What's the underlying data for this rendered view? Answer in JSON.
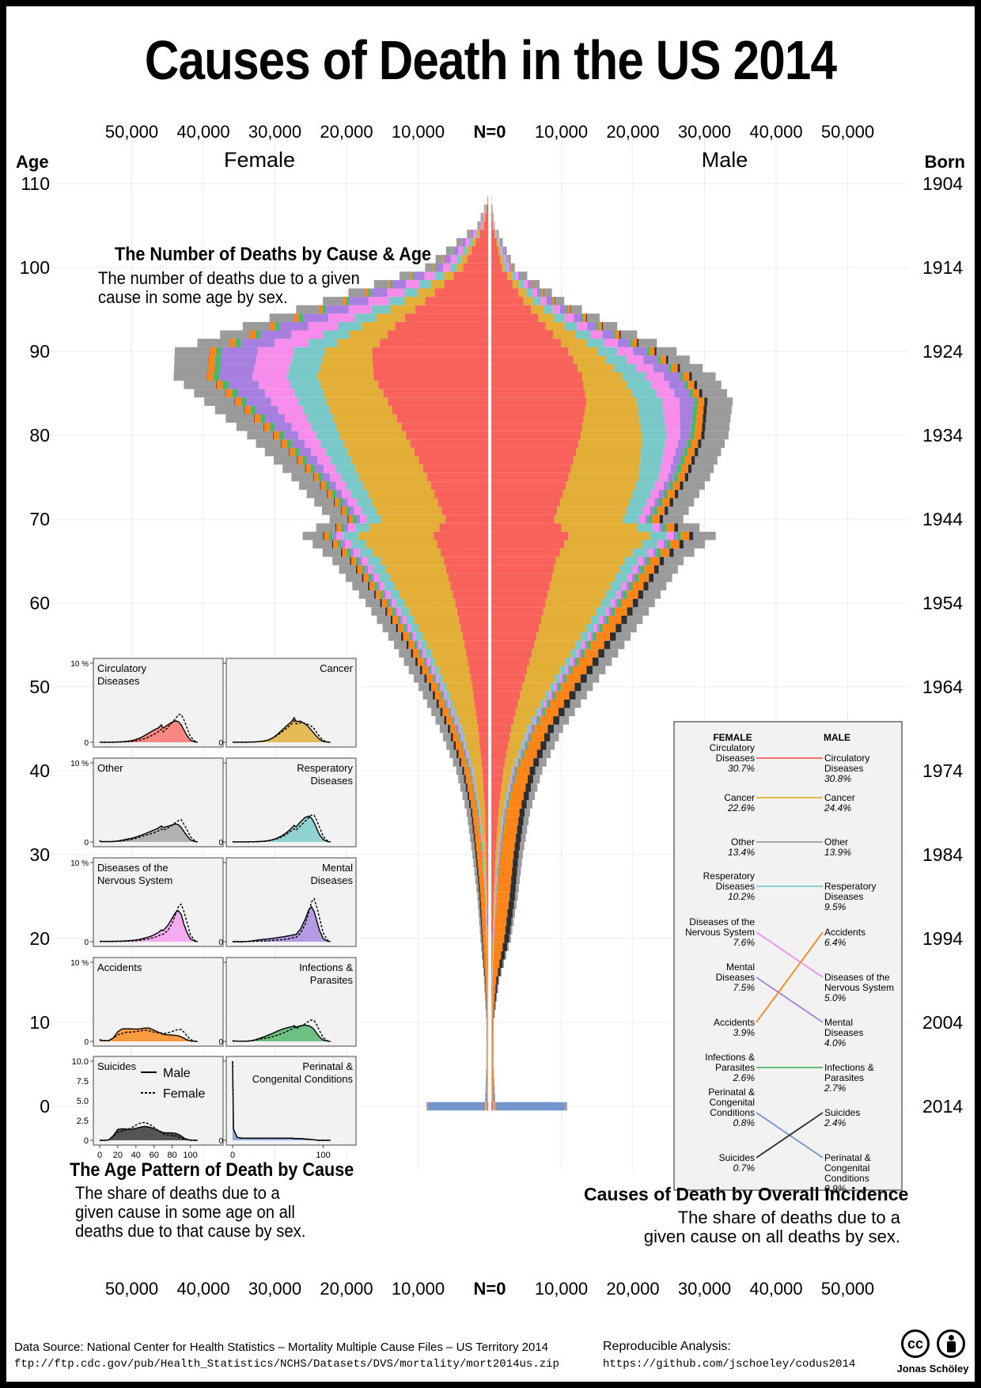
{
  "title": "Causes of Death in the US 2014",
  "pyramid": {
    "female_label": "Female",
    "male_label": "Male",
    "age_label": "Age",
    "born_label": "Born",
    "zero_label": "N=0",
    "x_ticks": [
      "50,000",
      "40,000",
      "30,000",
      "20,000",
      "10,000"
    ],
    "age_ticks": [
      "110",
      "100",
      "90",
      "80",
      "70",
      "60",
      "50",
      "40",
      "30",
      "20",
      "10",
      "0"
    ],
    "born_ticks": [
      "1904",
      "1914",
      "1924",
      "1934",
      "1944",
      "1954",
      "1964",
      "1974",
      "1984",
      "1994",
      "2004",
      "2014"
    ]
  },
  "annotations": {
    "number": {
      "title": "The Number of Deaths by Cause & Age",
      "body": "The number of deaths due to a given cause in some age by sex."
    },
    "age_pattern": {
      "title": "The Age Pattern of Death by Cause",
      "body": "The share of deaths due to a given cause in some age on all deaths due to that cause by sex."
    },
    "incidence": {
      "title": "Causes of Death by Overall Incidence",
      "body": "The share of deaths due to a given cause on all deaths by sex."
    }
  },
  "small_multiples": {
    "top_tick": "10 %",
    "zero_tick": "0",
    "suicide_y_ticks": [
      "10.0",
      "7.5",
      "5.0",
      "2.5",
      "0"
    ],
    "x_ticks": [
      "0",
      "20",
      "40",
      "60",
      "80",
      "100"
    ],
    "x_ticks_perinatal": [
      "0",
      "100"
    ],
    "legend_male": "Male",
    "legend_female": "Female",
    "panels": [
      {
        "label": "Circulatory Diseases",
        "color": "#F8766D"
      },
      {
        "label": "Cancer",
        "color": "#E2B13C"
      },
      {
        "label": "Other",
        "color": "#A6A6A6"
      },
      {
        "label": "Resperatory Diseases",
        "color": "#7FCBCB"
      },
      {
        "label": "Diseases of the Nervous System",
        "color": "#F79EF0"
      },
      {
        "label": "Mental Diseases",
        "color": "#A98CE0"
      },
      {
        "label": "Accidents",
        "color": "#FF8C1F"
      },
      {
        "label": "Infections & Parasites",
        "color": "#55B86E"
      },
      {
        "label": "Suicides",
        "color": "#3A3A3A"
      },
      {
        "label": "Perinatal & Congenital Conditions",
        "color": "#7A9BD1"
      }
    ]
  },
  "incidence_panel": {
    "female_header": "FEMALE",
    "male_header": "MALE"
  },
  "footer": {
    "source": "Data Source: National Center for Health Statistics – Mortality Multiple Cause Files – US Territory 2014",
    "url": "ftp://ftp.cdc.gov/pub/Health_Statistics/NCHS/Datasets/DVS/mortality/mort2014us.zip",
    "repro_label": "Reproducible Analysis:",
    "repro_url": "https://github.com/jschoeley/codus2014",
    "author": "Jonas Schöley",
    "cc_text": "cc"
  },
  "chart_data": [
    {
      "type": "bar",
      "title": "The Number of Deaths by Cause & Age",
      "xlabel": "",
      "ylabel": "Age",
      "xlim": [
        -50000,
        50000
      ],
      "ylim": [
        0,
        110
      ],
      "grid": true,
      "categories_note": "stacked counts per single-year age, female to the left, male to the right",
      "cause_order": [
        "Circulatory Diseases",
        "Cancer",
        "Resperatory Diseases",
        "Diseases of the Nervous System",
        "Mental Diseases",
        "Infections & Parasites",
        "Accidents",
        "Suicides",
        "Perinatal & Congenital Conditions",
        "Other"
      ],
      "colors": {
        "Circulatory Diseases": "#F8625B",
        "Cancer": "#E2AE35",
        "Other": "#9B9B9B",
        "Resperatory Diseases": "#79C8C8",
        "Diseases of the Nervous System": "#F78CEB",
        "Mental Diseases": "#A67FE0",
        "Accidents": "#FF8417",
        "Infections & Parasites": "#4DB56A",
        "Suicides": "#2E2E2E",
        "Perinatal & Congenital Conditions": "#7496CF"
      },
      "age_points": [
        0,
        1,
        5,
        10,
        15,
        20,
        25,
        30,
        35,
        40,
        45,
        50,
        55,
        60,
        65,
        68,
        70,
        75,
        80,
        84,
        87,
        90,
        93,
        96,
        100,
        105,
        108
      ],
      "female_by_cause": {
        "Circulatory Diseases": [
          200,
          30,
          20,
          25,
          40,
          80,
          150,
          280,
          450,
          800,
          1400,
          2200,
          3300,
          4600,
          6200,
          7600,
          6000,
          8500,
          11500,
          14000,
          16000,
          16200,
          13000,
          8800,
          3500,
          600,
          50
        ],
        "Cancer": [
          50,
          20,
          30,
          30,
          40,
          80,
          150,
          320,
          650,
          1200,
          2200,
          3600,
          5200,
          7000,
          8800,
          10500,
          9000,
          9500,
          9200,
          8600,
          7800,
          6600,
          4600,
          2800,
          900,
          150,
          10
        ],
        "Other": [
          300,
          80,
          60,
          60,
          80,
          150,
          250,
          400,
          550,
          800,
          1100,
          1400,
          1700,
          2000,
          2400,
          2800,
          2500,
          3000,
          3600,
          4200,
          4600,
          4800,
          3800,
          2800,
          1200,
          250,
          20
        ],
        "Resperatory Diseases": [
          40,
          10,
          10,
          10,
          10,
          20,
          30,
          60,
          100,
          200,
          350,
          550,
          850,
          1300,
          1800,
          2100,
          1900,
          2600,
          3300,
          3900,
          4300,
          4300,
          3400,
          2300,
          900,
          150,
          10
        ],
        "Diseases of the Nervous System": [
          30,
          20,
          20,
          20,
          20,
          30,
          40,
          60,
          90,
          130,
          200,
          300,
          400,
          550,
          800,
          1000,
          1000,
          1500,
          2500,
          3800,
          4800,
          5100,
          4100,
          2800,
          1000,
          150,
          10
        ],
        "Mental Diseases": [
          0,
          0,
          0,
          0,
          10,
          20,
          40,
          60,
          80,
          120,
          160,
          200,
          250,
          300,
          400,
          500,
          500,
          1000,
          2000,
          3400,
          4600,
          5000,
          4000,
          2700,
          1000,
          150,
          10
        ],
        "Accidents": [
          150,
          100,
          60,
          60,
          250,
          500,
          600,
          700,
          700,
          750,
          800,
          850,
          800,
          700,
          650,
          650,
          600,
          650,
          750,
          850,
          900,
          900,
          700,
          450,
          150,
          20,
          0
        ],
        "Infections & Parasites": [
          30,
          10,
          10,
          10,
          10,
          20,
          50,
          90,
          120,
          150,
          200,
          250,
          320,
          400,
          480,
          560,
          500,
          600,
          700,
          800,
          850,
          820,
          650,
          420,
          150,
          20,
          0
        ],
        "Suicides": [
          0,
          0,
          0,
          10,
          80,
          150,
          170,
          200,
          230,
          280,
          320,
          330,
          300,
          240,
          180,
          150,
          120,
          100,
          90,
          80,
          60,
          40,
          20,
          10,
          0,
          0,
          0
        ],
        "Perinatal & Congenital Conditions": [
          7800,
          150,
          40,
          30,
          30,
          30,
          30,
          30,
          30,
          30,
          30,
          30,
          30,
          30,
          30,
          30,
          20,
          20,
          20,
          10,
          10,
          10,
          0,
          0,
          0,
          0,
          0
        ]
      },
      "male_by_cause": {
        "Circulatory Diseases": [
          250,
          40,
          25,
          30,
          70,
          180,
          350,
          600,
          1000,
          1700,
          2800,
          4300,
          6000,
          7600,
          9000,
          10800,
          8800,
          10800,
          12500,
          13300,
          12700,
          10800,
          7600,
          4500,
          1500,
          200,
          20
        ],
        "Cancer": [
          60,
          25,
          35,
          35,
          50,
          100,
          180,
          330,
          600,
          1150,
          2200,
          3900,
          5800,
          7800,
          9600,
          11400,
          9700,
          9800,
          8600,
          7000,
          5600,
          4100,
          2600,
          1400,
          400,
          60,
          5
        ],
        "Other": [
          350,
          90,
          60,
          60,
          100,
          200,
          350,
          550,
          700,
          950,
          1250,
          1600,
          1950,
          2300,
          2700,
          3100,
          2800,
          3000,
          3300,
          3500,
          3300,
          2800,
          2000,
          1300,
          450,
          80,
          10
        ],
        "Resperatory Diseases": [
          50,
          15,
          10,
          10,
          15,
          30,
          40,
          70,
          110,
          200,
          350,
          580,
          900,
          1350,
          1900,
          2300,
          2100,
          2800,
          3400,
          3600,
          3300,
          2700,
          1800,
          1000,
          350,
          50,
          5
        ],
        "Diseases of the Nervous System": [
          40,
          25,
          25,
          25,
          30,
          40,
          50,
          70,
          100,
          140,
          200,
          300,
          400,
          550,
          750,
          950,
          900,
          1300,
          1900,
          2400,
          2500,
          2200,
          1400,
          800,
          250,
          40,
          5
        ],
        "Mental Diseases": [
          0,
          0,
          0,
          0,
          10,
          40,
          80,
          120,
          150,
          180,
          220,
          260,
          300,
          350,
          400,
          450,
          450,
          800,
          1400,
          2000,
          2200,
          1900,
          1300,
          700,
          200,
          30,
          5
        ],
        "Accidents": [
          200,
          150,
          100,
          100,
          500,
          1400,
          1800,
          1800,
          1800,
          1750,
          1800,
          1900,
          1900,
          1600,
          1300,
          1150,
          1000,
          950,
          900,
          850,
          800,
          650,
          450,
          250,
          70,
          10,
          0
        ],
        "Infections & Parasites": [
          40,
          15,
          10,
          10,
          10,
          25,
          60,
          120,
          180,
          250,
          320,
          400,
          470,
          520,
          560,
          600,
          550,
          600,
          620,
          600,
          550,
          450,
          300,
          170,
          50,
          10,
          0
        ],
        "Suicides": [
          0,
          0,
          0,
          20,
          300,
          700,
          750,
          720,
          720,
          780,
          850,
          900,
          850,
          750,
          620,
          560,
          500,
          480,
          480,
          450,
          380,
          280,
          150,
          70,
          20,
          0,
          0
        ],
        "Perinatal & Congenital Conditions": [
          9600,
          180,
          50,
          35,
          35,
          35,
          35,
          35,
          35,
          35,
          35,
          35,
          35,
          35,
          35,
          30,
          30,
          30,
          20,
          20,
          10,
          10,
          0,
          0,
          0,
          0,
          0
        ]
      }
    },
    {
      "type": "line",
      "title": "Causes of Death by Overall Incidence",
      "xlabel": "",
      "ylabel": "",
      "x": [
        "FEMALE",
        "MALE"
      ],
      "series": [
        {
          "name": "Circulatory Diseases",
          "female_label": "Circulatory Diseases",
          "male_label": "Circulatory Diseases",
          "female_pct": "30.7%",
          "male_pct": "30.8%",
          "female_rank": 1,
          "male_rank": 1,
          "color": "#F8625B"
        },
        {
          "name": "Cancer",
          "female_label": "Cancer",
          "male_label": "Cancer",
          "female_pct": "22.6%",
          "male_pct": "24.4%",
          "female_rank": 2,
          "male_rank": 2,
          "color": "#E2AE35"
        },
        {
          "name": "Other",
          "female_label": "Other",
          "male_label": "Other",
          "female_pct": "13.4%",
          "male_pct": "13.9%",
          "female_rank": 3,
          "male_rank": 3,
          "color": "#9B9B9B"
        },
        {
          "name": "Resperatory Diseases",
          "female_label": "Resperatory Diseases",
          "male_label": "Resperatory Diseases",
          "female_pct": "10.2%",
          "male_pct": "9.5%",
          "female_rank": 4,
          "male_rank": 4,
          "color": "#79C8C8"
        },
        {
          "name": "Diseases of the Nervous System",
          "female_label": "Diseases of the Nervous System",
          "male_label": "Diseases of the Nervous System",
          "female_pct": "7.6%",
          "male_pct": "5.0%",
          "female_rank": 5,
          "male_rank": 6,
          "color": "#F78CEB"
        },
        {
          "name": "Mental Diseases",
          "female_label": "Mental Diseases",
          "male_label": "Mental Diseases",
          "female_pct": "7.5%",
          "male_pct": "4.0%",
          "female_rank": 6,
          "male_rank": 7,
          "color": "#A67FE0"
        },
        {
          "name": "Accidents",
          "female_label": "Accidents",
          "male_label": "Accidents",
          "female_pct": "3.9%",
          "male_pct": "6.4%",
          "female_rank": 7,
          "male_rank": 5,
          "color": "#FF8417"
        },
        {
          "name": "Infections & Parasites",
          "female_label": "Infections & Parasites",
          "male_label": "Infections & Parasites",
          "female_pct": "2.6%",
          "male_pct": "2.7%",
          "female_rank": 8,
          "male_rank": 8,
          "color": "#4DB56A"
        },
        {
          "name": "Perinatal & Congenital Conditions",
          "female_label": "Perinatal & Congenital Conditions",
          "male_label": "Perinatal & Congenital Conditions",
          "female_pct": "0.8%",
          "male_pct": "0.9%",
          "female_rank": 9,
          "male_rank": 10,
          "color": "#7496CF"
        },
        {
          "name": "Suicides",
          "female_label": "Suicides",
          "male_label": "Suicides",
          "female_pct": "0.7%",
          "male_pct": "2.4%",
          "female_rank": 10,
          "male_rank": 9,
          "color": "#2E2E2E"
        }
      ]
    },
    {
      "type": "area",
      "title": "The Age Pattern of Death by Cause",
      "xlabel": "",
      "ylabel": "",
      "xlim": [
        0,
        110
      ],
      "ylim": [
        0,
        10
      ],
      "ages": [
        0,
        1,
        5,
        10,
        15,
        20,
        25,
        30,
        35,
        40,
        45,
        50,
        55,
        60,
        65,
        68,
        70,
        75,
        80,
        84,
        87,
        90,
        93,
        96,
        100,
        105,
        108
      ],
      "series_note": "percent of a cause's deaths occurring at each single-year age; values derived from the pyramid counts"
    }
  ]
}
